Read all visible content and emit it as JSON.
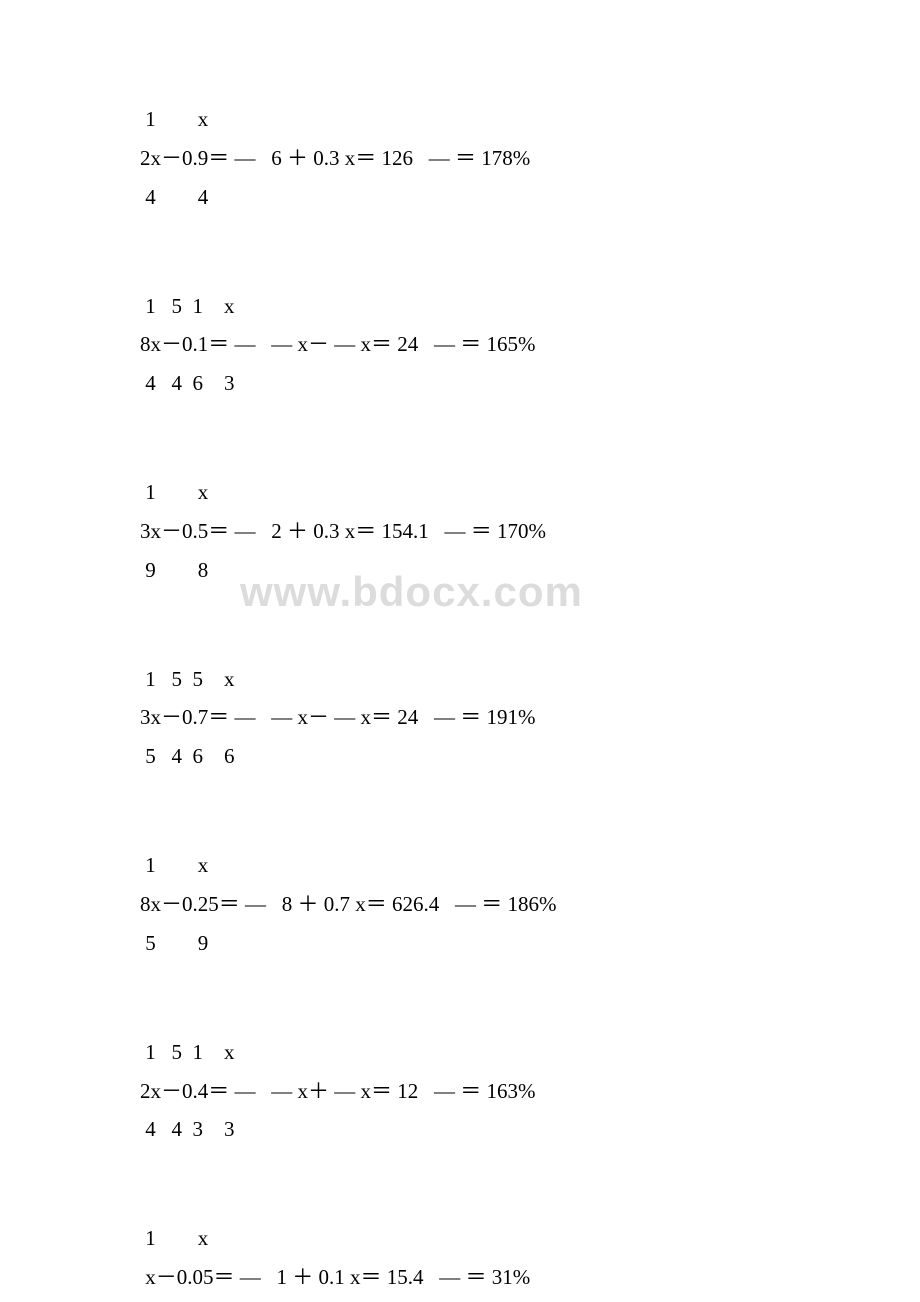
{
  "watermark": {
    "text": "www.bdocx.com",
    "color": "#dcdcdc",
    "fontsize": 42
  },
  "equations": [
    {
      "top": " 1        x",
      "middle": "2x－0.9＝ —   6 ＋ 0.3 x＝ 126   — ＝ 178%",
      "bottom": " 4        4"
    },
    {
      "top": " 1   5  1    x",
      "middle": "8x－0.1＝ —   — x－ — x＝ 24   — ＝ 165%",
      "bottom": " 4   4  6    3"
    },
    {
      "top": " 1        x",
      "middle": "3x－0.5＝ —   2 ＋ 0.3 x＝ 154.1   — ＝ 170%",
      "bottom": " 9        8"
    },
    {
      "top": " 1   5  5    x",
      "middle": "3x－0.7＝ —   — x－ — x＝ 24   — ＝ 191%",
      "bottom": " 5   4  6    6"
    },
    {
      "top": " 1        x",
      "middle": "8x－0.25＝ —   8 ＋ 0.7 x＝ 626.4   — ＝ 186%",
      "bottom": " 5        9"
    },
    {
      "top": " 1   5  1    x",
      "middle": "2x－0.4＝ —   — x＋ — x＝ 12   — ＝ 163%",
      "bottom": " 4   4  3    3"
    },
    {
      "top": " 1        x",
      "middle": " x－0.05＝ —   1 ＋ 0.1 x＝ 15.4   — ＝ 31%",
      "bottom": ""
    }
  ],
  "style": {
    "text_color": "#000000",
    "background_color": "#ffffff",
    "fontsize": 21
  }
}
